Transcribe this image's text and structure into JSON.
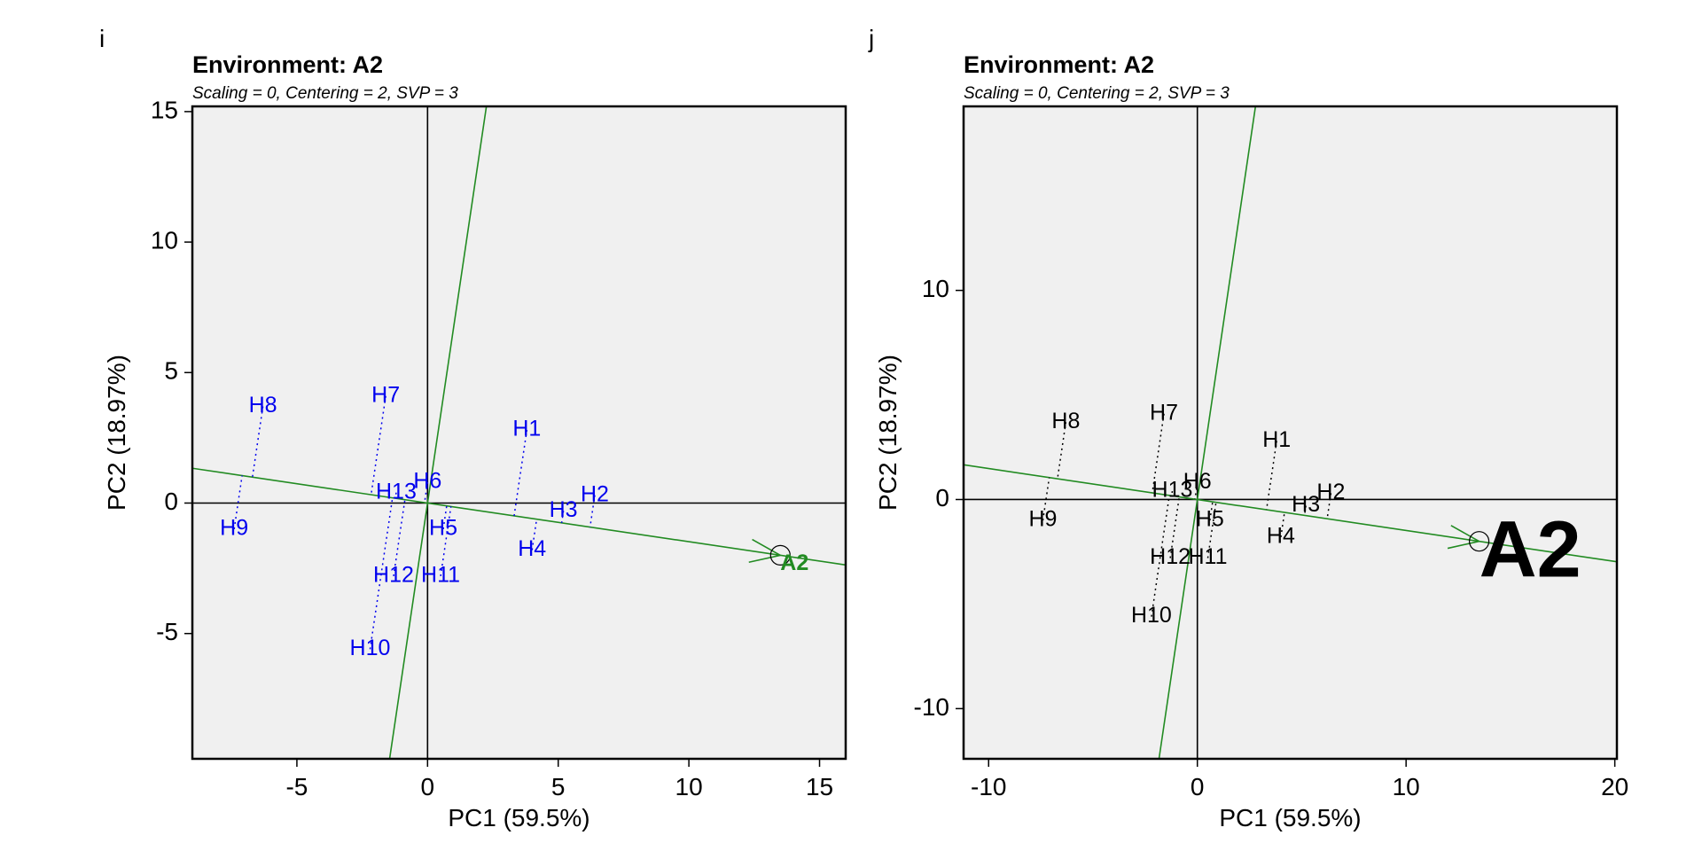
{
  "panels": [
    {
      "letter": "i",
      "title": "Environment: A2",
      "subtitle": "Scaling = 0, Centering = 2, SVP = 3",
      "xlabel": "PC1 (59.5%)",
      "ylabel": "PC2 (18.97%)",
      "label_color": "#0000ee",
      "env_color": "#228b22",
      "env_label_size": "medium",
      "xlim": [
        -9,
        16
      ],
      "ylim": [
        -9.8,
        15.2
      ],
      "xticks": [
        -5,
        0,
        5,
        10,
        15
      ],
      "yticks": [
        -5,
        0,
        5,
        10,
        15
      ],
      "xtick_labels": [
        "-5",
        "0",
        "5",
        "10",
        "15"
      ],
      "ytick_labels": [
        "-5",
        "0",
        "5",
        "10",
        "15"
      ]
    },
    {
      "letter": "j",
      "title": "Environment: A2",
      "subtitle": "Scaling = 0, Centering = 2, SVP = 3",
      "xlabel": "PC1 (59.5%)",
      "ylabel": "PC2 (18.97%)",
      "label_color": "#000000",
      "env_color": "#000000",
      "env_label_size": "large",
      "xlim": [
        -11.2,
        20.1
      ],
      "ylim": [
        -12.4,
        18.8
      ],
      "xticks": [
        -10,
        0,
        10,
        20
      ],
      "yticks": [
        -10,
        0,
        10
      ],
      "xtick_labels": [
        "-10",
        "0",
        "10",
        "20"
      ],
      "ytick_labels": [
        "-10",
        "0",
        "10"
      ]
    }
  ],
  "chart_data": {
    "type": "scatter",
    "subtype": "GGE biplot - environment view",
    "title": "Environment: A2",
    "subtitle": "Scaling = 0, Centering = 2, SVP = 3",
    "xlabel": "PC1 (59.5%)",
    "ylabel": "PC2 (18.97%)",
    "environment": {
      "name": "A2",
      "x": 13.5,
      "y": -2.0
    },
    "genotypes": [
      {
        "name": "H1",
        "x": 3.8,
        "y": 2.8
      },
      {
        "name": "H2",
        "x": 6.4,
        "y": 0.3
      },
      {
        "name": "H3",
        "x": 5.2,
        "y": -0.3
      },
      {
        "name": "H4",
        "x": 4.0,
        "y": -1.8
      },
      {
        "name": "H5",
        "x": 0.6,
        "y": -1.0
      },
      {
        "name": "H6",
        "x": 0.0,
        "y": 0.8
      },
      {
        "name": "H7",
        "x": -1.6,
        "y": 4.1
      },
      {
        "name": "H8",
        "x": -6.3,
        "y": 3.7
      },
      {
        "name": "H9",
        "x": -7.4,
        "y": -1.0
      },
      {
        "name": "H10",
        "x": -2.2,
        "y": -5.6
      },
      {
        "name": "H11",
        "x": 0.5,
        "y": -2.8
      },
      {
        "name": "H12",
        "x": -1.3,
        "y": -2.8
      },
      {
        "name": "H13",
        "x": -1.2,
        "y": 0.4
      }
    ]
  }
}
